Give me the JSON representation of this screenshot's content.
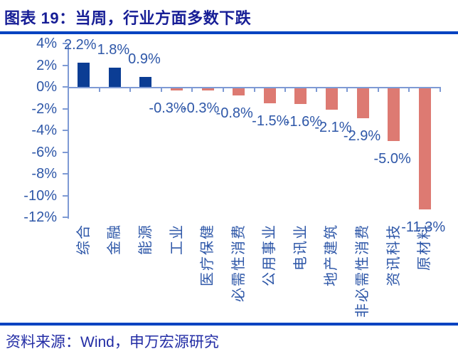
{
  "header": {
    "title": "图表 19：当周，行业方面多数下跌"
  },
  "footer": {
    "source": "资料来源：Wind，申万宏源研究"
  },
  "colors": {
    "positive_bar": "#0B3D94",
    "negative_bar": "#DD7A72",
    "axis_line": "#7E9AD4",
    "label_text": "#2E57A8",
    "title_text": "#171E96",
    "rule": "#0043C1",
    "source_text": "#232DA5"
  },
  "chart_data": {
    "type": "bar",
    "title": "当周，行业方面多数下跌",
    "categories": [
      "综合",
      "金融",
      "能源",
      "工业",
      "医疗保健",
      "必需性消费",
      "公用事业",
      "电讯业",
      "地产建筑",
      "非必需性消费",
      "资讯科技",
      "原材料"
    ],
    "values": [
      2.2,
      1.8,
      0.9,
      -0.3,
      -0.3,
      -0.8,
      -1.5,
      -1.6,
      -2.1,
      -2.9,
      -5.0,
      -11.3
    ],
    "labels": [
      "2.2%",
      "1.8%",
      "0.9%",
      "-0.3%",
      "-0.3%",
      "-0.8%",
      "-1.5%",
      "-1.6%",
      "-2.1%",
      "-2.9%",
      "-5.0%",
      "-11.3%"
    ],
    "y_ticks": [
      "4%",
      "2%",
      "0%",
      "-2%",
      "-4%",
      "-6%",
      "-8%",
      "-10%",
      "-12%"
    ],
    "y_tick_values": [
      4,
      2,
      0,
      -2,
      -4,
      -6,
      -8,
      -10,
      -12
    ],
    "xlabel": "",
    "ylabel": "",
    "ylim": [
      -12,
      4
    ],
    "grid": false,
    "legend": "none",
    "bar_colors": {
      "positive": "#0B3D94",
      "negative": "#DD7A72"
    }
  }
}
